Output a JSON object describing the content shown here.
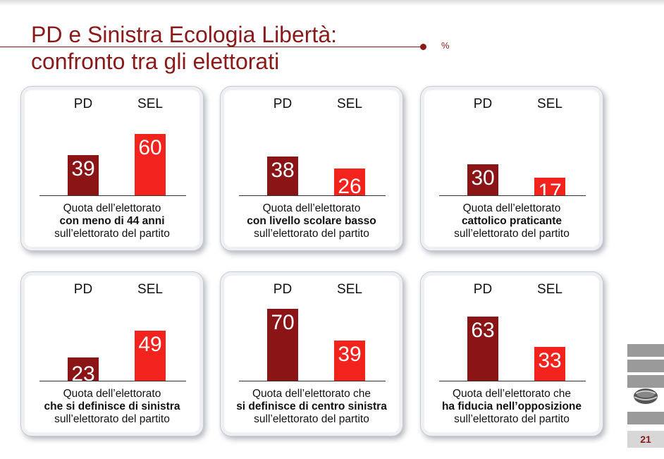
{
  "title_line1": "PD e Sinistra Ecologia Libertà:",
  "title_line2": "confronto tra gli elettorati",
  "unit": "%",
  "page_number": "21",
  "colors": {
    "pd": "#8b1416",
    "sel": "#f2221d",
    "title": "#8a1a1a"
  },
  "chart_data": [
    {
      "type": "bar",
      "categories": [
        "PD",
        "SEL"
      ],
      "values": [
        39,
        60
      ],
      "caption": [
        "Quota dell’elettorato",
        "con meno di 44 anni",
        "sull’elettorato del partito"
      ]
    },
    {
      "type": "bar",
      "categories": [
        "PD",
        "SEL"
      ],
      "values": [
        38,
        26
      ],
      "caption": [
        "Quota dell’elettorato",
        "con livello scolare basso",
        "sull’elettorato del partito"
      ]
    },
    {
      "type": "bar",
      "categories": [
        "PD",
        "SEL"
      ],
      "values": [
        30,
        17
      ],
      "caption": [
        "Quota dell’elettorato",
        "cattolico praticante",
        "sull’elettorato del partito"
      ]
    },
    {
      "type": "bar",
      "categories": [
        "PD",
        "SEL"
      ],
      "values": [
        23,
        49
      ],
      "caption": [
        "Quota dell’elettorato",
        "che si definisce di sinistra",
        "sull’elettorato del partito"
      ]
    },
    {
      "type": "bar",
      "categories": [
        "PD",
        "SEL"
      ],
      "values": [
        70,
        39
      ],
      "caption": [
        "Quota dell’elettorato che",
        "si definisce di centro sinistra",
        "sull’elettorato del partito"
      ]
    },
    {
      "type": "bar",
      "categories": [
        "PD",
        "SEL"
      ],
      "values": [
        63,
        33
      ],
      "caption": [
        "Quota dell’elettorato che",
        "ha fiducia nell’opposizione",
        "sull’elettorato del partito"
      ]
    }
  ]
}
